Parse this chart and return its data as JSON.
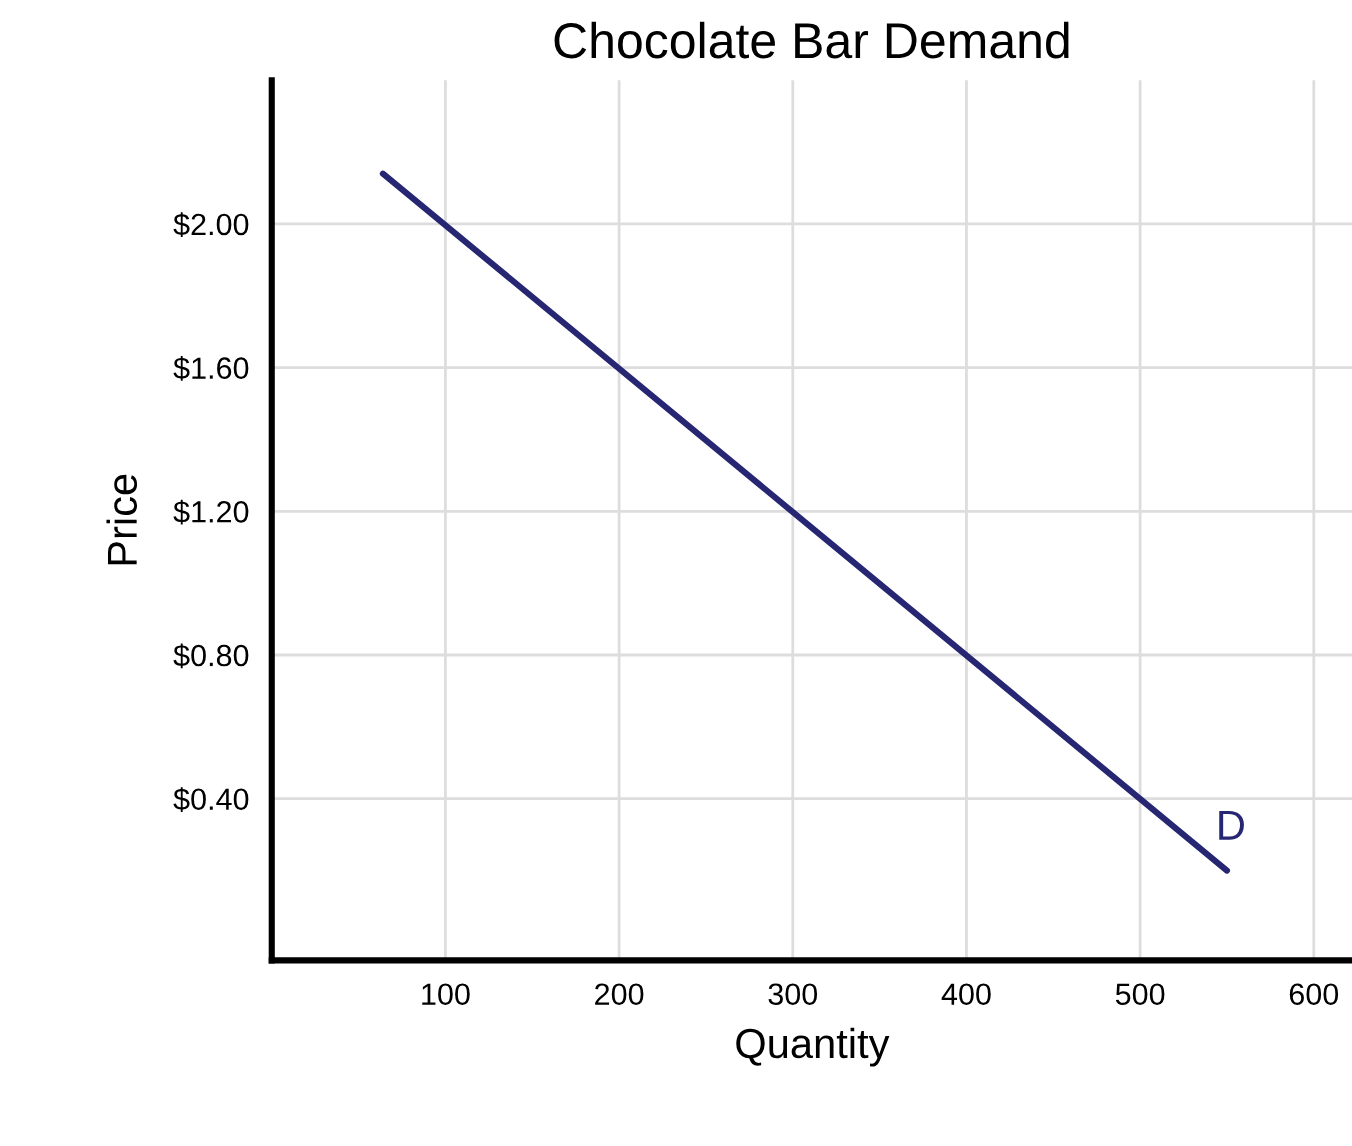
{
  "chart_data": {
    "type": "line",
    "title": "Chocolate Bar Demand",
    "xlabel": "Quantity",
    "ylabel": "Price",
    "x": [
      64,
      550
    ],
    "series": [
      {
        "color": "#262673",
        "values": [
          2.14,
          0.2
        ]
      }
    ],
    "xlim": [
      0,
      622
    ],
    "xticks": [
      100,
      200,
      300,
      400,
      500,
      600
    ],
    "ylim": [
      -0.05,
      2.4
    ],
    "yticks": [
      {
        "value": 0.4,
        "label": "$0.40"
      },
      {
        "value": 0.8,
        "label": "$0.80"
      },
      {
        "value": 1.2,
        "label": "$1.20"
      },
      {
        "value": 1.6,
        "label": "$1.60"
      },
      {
        "value": 2.0,
        "label": "$2.00"
      }
    ],
    "annotations": [
      "D"
    ],
    "grid": true,
    "marker": "none",
    "line_style": "solid",
    "legend": false
  }
}
